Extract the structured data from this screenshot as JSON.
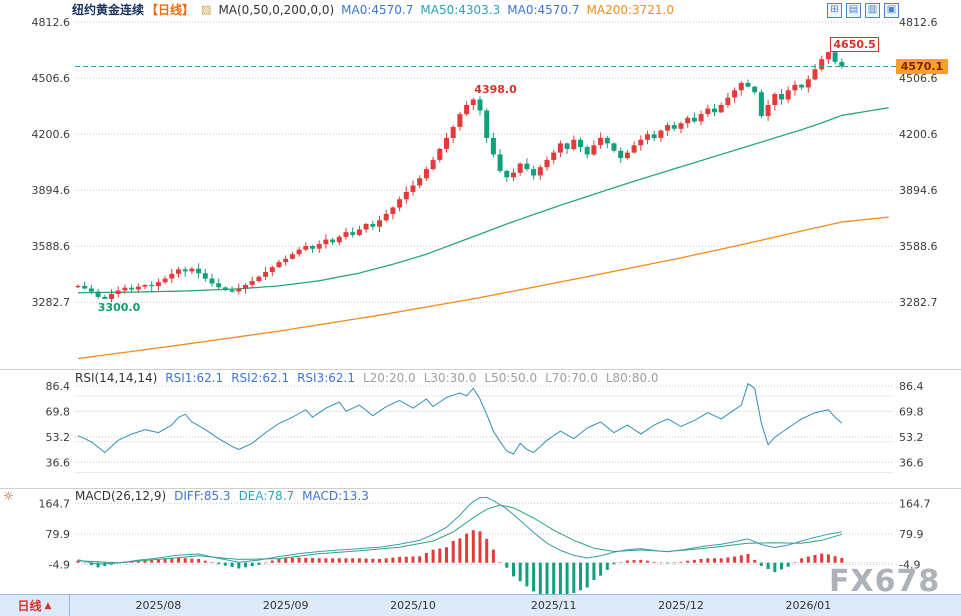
{
  "header": {
    "title": "纽约黄金连续",
    "period_tag": "【日线】",
    "ma_icon_glyph": "▨",
    "ma_group_label": "MA(0,50,0,200,0,0)",
    "ma_items": [
      "MA0:4570.7",
      "MA50:4303.3",
      "MA0:4570.7",
      "MA200:3721.0"
    ]
  },
  "toolbar_icons": [
    {
      "name": "grid-layout",
      "glyph": "⊞"
    },
    {
      "name": "split-horizontal",
      "glyph": "▤"
    },
    {
      "name": "split-vertical",
      "glyph": "▥"
    },
    {
      "name": "fullscreen",
      "glyph": "▣"
    }
  ],
  "rsi_header": {
    "label": "RSI(14,14,14)",
    "values": [
      "RSI1:62.1",
      "RSI2:62.1",
      "RSI3:62.1"
    ],
    "refs": [
      "L20:20.0",
      "L30:30.0",
      "L50:50.0",
      "L70:70.0",
      "L80:80.0"
    ]
  },
  "macd_header": {
    "icon_glyph": "☼",
    "label": "MACD(26,12,9)",
    "values": [
      "DIFF:85.3",
      "DEA:78.7",
      "MACD:13.3"
    ]
  },
  "bottom_axis": {
    "period": "日线",
    "arrow": "▲"
  },
  "watermark": "FX678",
  "colors": {
    "up": "#e23b3b",
    "down": "#11a07c",
    "ma50": "#2aa876",
    "ma200": "#ef8d1e",
    "rsi_line": "#2f8fbe",
    "diff_line": "#3a9bb4",
    "dea_line": "#2aa876",
    "grid": "#c9c9c9",
    "ref": "#e9e9e9",
    "last_price_line": "#2f9fb0",
    "tag_bg": "#f7a31f",
    "tag_text": "#8b1a1a",
    "accent_blue": "#3f74d9",
    "accent_teal": "#2aa4b8",
    "accent_orange": "#f08c1e",
    "up_label_red": "#d93025",
    "down_label_green": "#0f9d6e"
  },
  "chart_data": {
    "type": "candlestick",
    "title": "纽约黄金连续",
    "period": "日线",
    "x_ticks": {
      "labels": [
        "2025/08",
        "2025/09",
        "2025/10",
        "2025/11",
        "2025/12",
        "2026/01"
      ],
      "candle_indices": [
        12,
        31,
        50,
        71,
        90,
        109
      ]
    },
    "price_panel": {
      "ylim": [
        2940,
        4835
      ],
      "gridlines": [
        4812.6,
        4506.6,
        4200.6,
        3894.6,
        3588.6,
        3282.7
      ],
      "first_open": 3365,
      "closes": [
        3372,
        3358,
        3341,
        3312,
        3301,
        3328,
        3347,
        3362,
        3352,
        3368,
        3377,
        3371,
        3392,
        3412,
        3438,
        3462,
        3451,
        3466,
        3441,
        3412,
        3386,
        3364,
        3349,
        3341,
        3356,
        3377,
        3398,
        3422,
        3448,
        3474,
        3502,
        3520,
        3545,
        3570,
        3590,
        3575,
        3600,
        3625,
        3610,
        3640,
        3665,
        3650,
        3680,
        3710,
        3695,
        3730,
        3765,
        3800,
        3845,
        3885,
        3920,
        3960,
        4010,
        4060,
        4120,
        4180,
        4240,
        4310,
        4360,
        4390,
        4330,
        4180,
        4090,
        4000,
        3965,
        3990,
        4040,
        4010,
        3975,
        4020,
        4060,
        4100,
        4150,
        4120,
        4170,
        4130,
        4090,
        4140,
        4180,
        4150,
        4110,
        4070,
        4100,
        4140,
        4170,
        4200,
        4180,
        4220,
        4250,
        4230,
        4260,
        4290,
        4270,
        4310,
        4340,
        4320,
        4360,
        4400,
        4440,
        4480,
        4460,
        4430,
        4300,
        4360,
        4420,
        4390,
        4440,
        4470,
        4455,
        4500,
        4555,
        4610,
        4648,
        4595,
        4570.1
      ],
      "extremes": {
        "low_index": 4,
        "low_value": 3300.0,
        "peak_index": 59,
        "peak_value": 4398.0,
        "high_index": 112,
        "high_value": 4650.5
      },
      "last_price": 4570.1,
      "ma50": {
        "current": 4303.3,
        "points": [
          [
            0,
            3335
          ],
          [
            8,
            3338
          ],
          [
            16,
            3344
          ],
          [
            24,
            3356
          ],
          [
            30,
            3372
          ],
          [
            36,
            3400
          ],
          [
            42,
            3442
          ],
          [
            47,
            3490
          ],
          [
            52,
            3545
          ],
          [
            56,
            3600
          ],
          [
            60,
            3655
          ],
          [
            64,
            3710
          ],
          [
            68,
            3762
          ],
          [
            72,
            3812
          ],
          [
            76,
            3860
          ],
          [
            80,
            3908
          ],
          [
            84,
            3955
          ],
          [
            88,
            4000
          ],
          [
            92,
            4045
          ],
          [
            96,
            4090
          ],
          [
            100,
            4135
          ],
          [
            104,
            4180
          ],
          [
            108,
            4225
          ],
          [
            111,
            4262
          ],
          [
            114,
            4303.3
          ],
          [
            121,
            4345
          ]
        ]
      },
      "ma200": {
        "current": 3721.0,
        "points": [
          [
            0,
            2975
          ],
          [
            15,
            3048
          ],
          [
            30,
            3125
          ],
          [
            45,
            3212
          ],
          [
            60,
            3308
          ],
          [
            75,
            3415
          ],
          [
            90,
            3525
          ],
          [
            100,
            3605
          ],
          [
            108,
            3672
          ],
          [
            114,
            3721
          ],
          [
            121,
            3748
          ]
        ]
      }
    },
    "rsi_panel": {
      "ylim": [
        25,
        95
      ],
      "gridlines": [
        86.4,
        69.8,
        53.2,
        36.6
      ],
      "ref_values": [
        30,
        50,
        70,
        80
      ],
      "current": 62.1,
      "points": [
        [
          0,
          54
        ],
        [
          2,
          50
        ],
        [
          4,
          43
        ],
        [
          6,
          51
        ],
        [
          8,
          55
        ],
        [
          10,
          58
        ],
        [
          12,
          56
        ],
        [
          14,
          61
        ],
        [
          15,
          66
        ],
        [
          16,
          68
        ],
        [
          17,
          63
        ],
        [
          19,
          58
        ],
        [
          21,
          52
        ],
        [
          23,
          47
        ],
        [
          24,
          45
        ],
        [
          26,
          49
        ],
        [
          28,
          56
        ],
        [
          30,
          62
        ],
        [
          32,
          66
        ],
        [
          34,
          71
        ],
        [
          35,
          66
        ],
        [
          37,
          72
        ],
        [
          39,
          76
        ],
        [
          40,
          70
        ],
        [
          42,
          74
        ],
        [
          44,
          67
        ],
        [
          46,
          73
        ],
        [
          48,
          77
        ],
        [
          50,
          72
        ],
        [
          52,
          78
        ],
        [
          53,
          73
        ],
        [
          55,
          79
        ],
        [
          57,
          82
        ],
        [
          58,
          80
        ],
        [
          59,
          85
        ],
        [
          60,
          78
        ],
        [
          61,
          68
        ],
        [
          62,
          57
        ],
        [
          63,
          50
        ],
        [
          64,
          44
        ],
        [
          65,
          42
        ],
        [
          66,
          49
        ],
        [
          67,
          45
        ],
        [
          68,
          43
        ],
        [
          70,
          51
        ],
        [
          72,
          57
        ],
        [
          74,
          52
        ],
        [
          76,
          59
        ],
        [
          78,
          63
        ],
        [
          80,
          56
        ],
        [
          82,
          61
        ],
        [
          84,
          55
        ],
        [
          86,
          61
        ],
        [
          88,
          65
        ],
        [
          90,
          60
        ],
        [
          92,
          64
        ],
        [
          94,
          69
        ],
        [
          96,
          65
        ],
        [
          98,
          71
        ],
        [
          99,
          74
        ],
        [
          100,
          88
        ],
        [
          101,
          85
        ],
        [
          102,
          62
        ],
        [
          103,
          48
        ],
        [
          104,
          53
        ],
        [
          106,
          59
        ],
        [
          108,
          65
        ],
        [
          110,
          69
        ],
        [
          112,
          71
        ],
        [
          113,
          66
        ],
        [
          114,
          62.1
        ]
      ]
    },
    "macd_panel": {
      "ylim": [
        -62,
        196
      ],
      "gridlines": [
        164.7,
        79.9,
        -4.9
      ],
      "diff_current": 85.3,
      "dea_current": 78.7,
      "hist_current": 13.3,
      "diff_points": [
        [
          0,
          8
        ],
        [
          3,
          -4
        ],
        [
          6,
          -1
        ],
        [
          9,
          7
        ],
        [
          12,
          13
        ],
        [
          15,
          21
        ],
        [
          18,
          24
        ],
        [
          21,
          12
        ],
        [
          24,
          1
        ],
        [
          27,
          7
        ],
        [
          30,
          17
        ],
        [
          33,
          25
        ],
        [
          36,
          31
        ],
        [
          39,
          35
        ],
        [
          42,
          39
        ],
        [
          45,
          43
        ],
        [
          48,
          51
        ],
        [
          51,
          62
        ],
        [
          53,
          78
        ],
        [
          55,
          98
        ],
        [
          57,
          132
        ],
        [
          58,
          152
        ],
        [
          59,
          170
        ],
        [
          60,
          180
        ],
        [
          61,
          181
        ],
        [
          62,
          172
        ],
        [
          64,
          149
        ],
        [
          66,
          117
        ],
        [
          68,
          84
        ],
        [
          70,
          54
        ],
        [
          72,
          34
        ],
        [
          74,
          20
        ],
        [
          76,
          13
        ],
        [
          78,
          19
        ],
        [
          80,
          29
        ],
        [
          82,
          36
        ],
        [
          84,
          39
        ],
        [
          86,
          34
        ],
        [
          88,
          30
        ],
        [
          90,
          35
        ],
        [
          92,
          41
        ],
        [
          94,
          47
        ],
        [
          96,
          51
        ],
        [
          98,
          58
        ],
        [
          100,
          66
        ],
        [
          102,
          50
        ],
        [
          104,
          42
        ],
        [
          106,
          49
        ],
        [
          108,
          60
        ],
        [
          110,
          70
        ],
        [
          112,
          79
        ],
        [
          114,
          85.3
        ]
      ],
      "dea_points": [
        [
          0,
          5
        ],
        [
          6,
          0
        ],
        [
          12,
          9
        ],
        [
          18,
          19
        ],
        [
          24,
          9
        ],
        [
          30,
          11
        ],
        [
          36,
          25
        ],
        [
          42,
          33
        ],
        [
          48,
          43
        ],
        [
          53,
          60
        ],
        [
          56,
          85
        ],
        [
          59,
          125
        ],
        [
          61,
          148
        ],
        [
          63,
          160
        ],
        [
          65,
          152
        ],
        [
          68,
          124
        ],
        [
          71,
          90
        ],
        [
          74,
          62
        ],
        [
          77,
          40
        ],
        [
          80,
          31
        ],
        [
          84,
          35
        ],
        [
          88,
          31
        ],
        [
          92,
          37
        ],
        [
          96,
          45
        ],
        [
          100,
          54
        ],
        [
          104,
          55
        ],
        [
          108,
          54
        ],
        [
          111,
          62
        ],
        [
          114,
          78.7
        ]
      ]
    },
    "annotations": {
      "high_label": {
        "text": "4650.5"
      },
      "peak_label": {
        "text": "4398.0"
      },
      "low_label": {
        "text": "3300.0"
      },
      "last_price_tag": {
        "text": "4570.1"
      }
    }
  }
}
